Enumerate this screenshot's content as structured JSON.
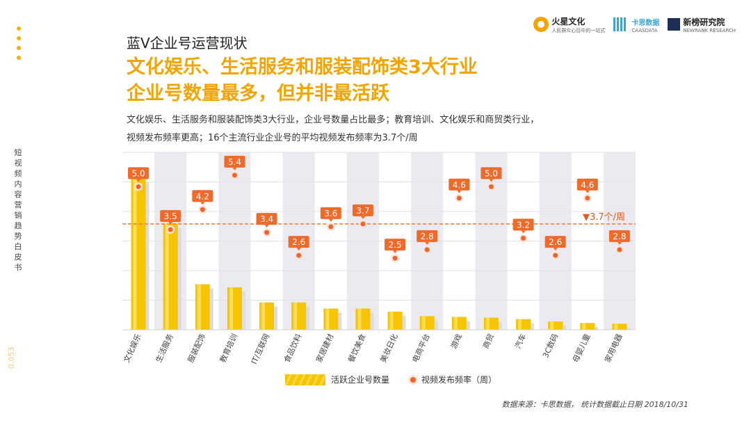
{
  "header": {
    "subject": "蓝V企业号运营现状",
    "headline_line1": "文化娱乐、生活服务和服装配饰类3大行业",
    "headline_line2": "企业号数量最多，但并非最活跃",
    "desc_line1": "文化娱乐、生活服务和服装配饰类3大行业，企业号数量占比最多；教育培训、文化娱乐和商贸类行业，",
    "desc_line2": "视频发布频率更高；16个主流行业企业号的平均视频发布频率为3.7个/周"
  },
  "sidebar": {
    "title": "短视频内容营销趋势白皮书",
    "page_number": "0.053"
  },
  "logos": {
    "huoxing": "火星文化",
    "huoxing_sub": "人民群众心目中的一站式",
    "kasi": "卡思数据",
    "kasi_sub": "CAASDATA",
    "xinbang": "新榜研究院",
    "xinbang_sub": "NEWRANK RESEARCH"
  },
  "legend": {
    "bar_label": "活跃企业号数量",
    "dot_label": "视频发布频率（周）"
  },
  "source": "数据来源：卡思数据，  统计数据截止日期 2018/10/31",
  "chart_data": {
    "type": "bar",
    "categories": [
      "文化娱乐",
      "生活服务",
      "服装配饰",
      "教育培训",
      "IT/互联网",
      "食品饮料",
      "家居建材",
      "餐饮美食",
      "美妆日化",
      "电商平台",
      "游戏",
      "商贸",
      "汽车",
      "3C数码",
      "母婴儿童",
      "家用电器"
    ],
    "series": [
      {
        "name": "活跃企业号数量",
        "type": "bar",
        "values": [
          100,
          70,
          30,
          28,
          18,
          18,
          14,
          14,
          12,
          9,
          8.5,
          8,
          7,
          5.5,
          4.5,
          4
        ]
      },
      {
        "name": "视频发布频率（周）",
        "type": "scatter",
        "values": [
          5.0,
          3.5,
          4.2,
          5.4,
          3.4,
          2.6,
          3.6,
          3.7,
          2.5,
          2.8,
          4.6,
          5.0,
          3.2,
          2.6,
          4.6,
          2.8
        ]
      }
    ],
    "average": {
      "value": 3.7,
      "label": "▼3.7个/周"
    },
    "colors": {
      "bar": "#f7c500",
      "bar_highlight": "#ffde55",
      "dot": "#f2642c",
      "label_bg": "#f26a2a",
      "avg_line": "#f07b3a",
      "alt_band": "#eaeaf0"
    }
  }
}
